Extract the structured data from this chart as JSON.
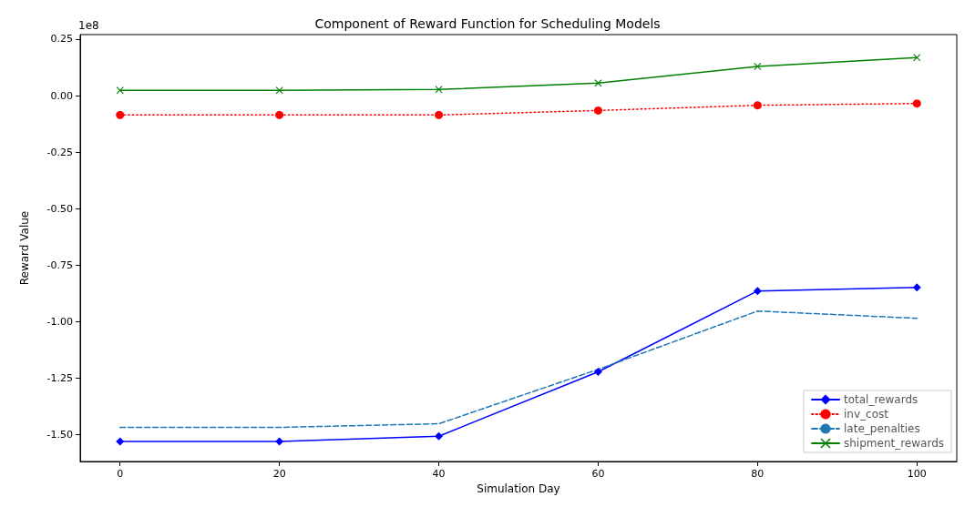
{
  "chart_data": {
    "type": "line",
    "title": "Component of Reward Function for Scheduling Models",
    "xlabel": "Simulation Day",
    "ylabel": "Reward Value",
    "annotations": [
      "1e8"
    ],
    "x": [
      0,
      20,
      40,
      60,
      80,
      100
    ],
    "series": [
      {
        "name": "total_rewards",
        "color": "#0000ff",
        "marker": "diamond",
        "line_style": "solid",
        "values": [
          -1.531,
          -1.531,
          -1.508,
          -1.223,
          -0.865,
          -0.849
        ]
      },
      {
        "name": "inv_cost",
        "color": "#ff0000",
        "marker": "circle",
        "line_style": "dotted",
        "values": [
          -0.086,
          -0.086,
          -0.086,
          -0.066,
          -0.043,
          -0.035
        ]
      },
      {
        "name": "late_penalties",
        "color": "#1f77b4",
        "marker": "none",
        "line_style": "dashed",
        "values": [
          -1.469,
          -1.469,
          -1.453,
          -1.212,
          -0.954,
          -0.986
        ]
      },
      {
        "name": "shipment_rewards",
        "color": "#008000",
        "marker": "cross",
        "line_style": "solid",
        "values": [
          0.023,
          0.023,
          0.027,
          0.055,
          0.129,
          0.168
        ]
      }
    ],
    "xlim": [
      -5,
      105
    ],
    "xticks": [
      0,
      20,
      40,
      60,
      80,
      100
    ],
    "ylim": [
      -1.62,
      0.27
    ],
    "yticks": [
      {
        "value": -1.5,
        "label": "-1.50"
      },
      -1.25,
      {
        "value": -1,
        "label": "-1.00"
      },
      -0.75,
      {
        "value": -0.5,
        "label": "-0.50"
      },
      -0.25,
      {
        "value": 0,
        "label": "0.00"
      },
      0.25
    ],
    "grid": false,
    "legend": "bottom right"
  }
}
